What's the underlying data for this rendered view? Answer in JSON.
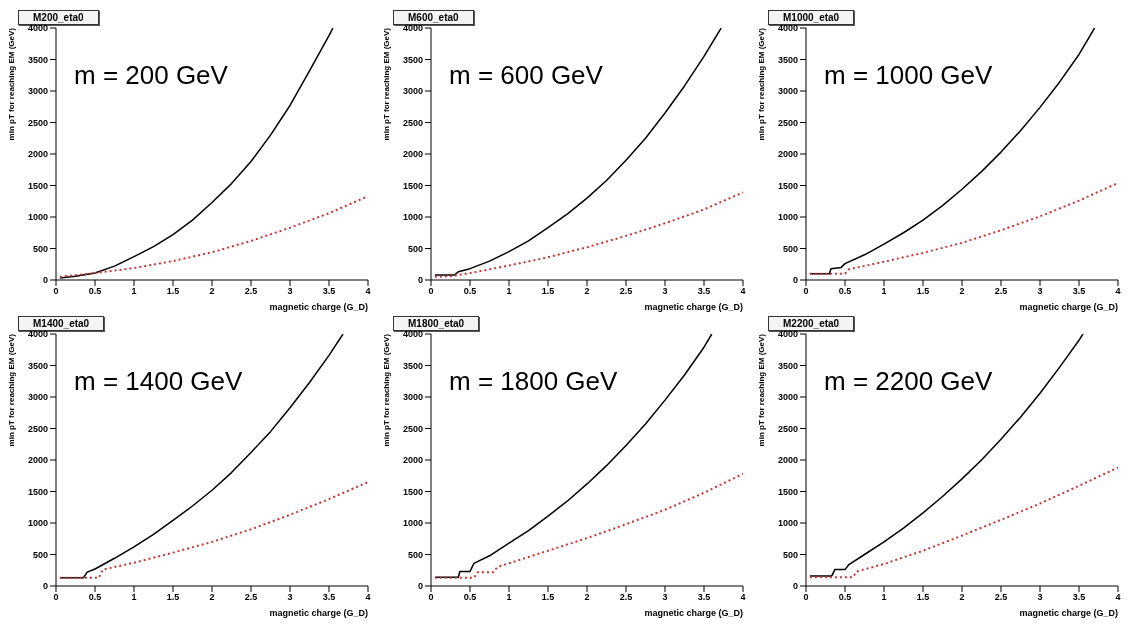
{
  "chart_data": [
    {
      "type": "line",
      "title": "M200_eta0",
      "annotations": [
        "m = 200 GeV"
      ],
      "xlabel": "magnetic charge (G_D)",
      "ylabel": "min pT for reaching EM (GeV)",
      "xlim": [
        0,
        4
      ],
      "ylim": [
        0,
        4000
      ],
      "xticks": [
        0,
        0.5,
        1,
        1.5,
        2,
        2.5,
        3,
        3.5,
        4
      ],
      "yticks": [
        0,
        500,
        1000,
        1500,
        2000,
        2500,
        3000,
        3500,
        4000
      ],
      "series": [
        {
          "color": "#000000",
          "line_style": "solid",
          "x": [
            0.05,
            0.25,
            0.5,
            0.75,
            1,
            1.25,
            1.5,
            1.75,
            2,
            2.25,
            2.5,
            2.75,
            3,
            3.25,
            3.5,
            3.55
          ],
          "values": [
            30,
            60,
            110,
            220,
            370,
            530,
            720,
            950,
            1230,
            1530,
            1880,
            2300,
            2770,
            3320,
            3880,
            4000
          ]
        },
        {
          "color": "#cc3333",
          "line_style": "dotted",
          "x": [
            0.05,
            0.5,
            1,
            1.5,
            2,
            2.5,
            3,
            3.5,
            4
          ],
          "values": [
            50,
            110,
            190,
            300,
            440,
            620,
            830,
            1060,
            1330
          ]
        }
      ]
    },
    {
      "type": "line",
      "title": "M600_eta0",
      "annotations": [
        "m = 600 GeV"
      ],
      "xlabel": "magnetic charge (G_D)",
      "ylabel": "min pT for reaching EM (GeV)",
      "xlim": [
        0,
        4
      ],
      "ylim": [
        0,
        4000
      ],
      "xticks": [
        0,
        0.5,
        1,
        1.5,
        2,
        2.5,
        3,
        3.5,
        4
      ],
      "yticks": [
        0,
        500,
        1000,
        1500,
        2000,
        2500,
        3000,
        3500,
        4000
      ],
      "series": [
        {
          "color": "#000000",
          "line_style": "solid",
          "x": [
            0.05,
            0.3,
            0.35,
            0.5,
            0.75,
            1,
            1.25,
            1.5,
            1.75,
            2,
            2.25,
            2.5,
            2.75,
            3,
            3.25,
            3.5,
            3.72
          ],
          "values": [
            80,
            80,
            130,
            180,
            300,
            450,
            620,
            830,
            1050,
            1300,
            1580,
            1900,
            2250,
            2650,
            3080,
            3550,
            4000
          ]
        },
        {
          "color": "#cc3333",
          "line_style": "dotted",
          "x": [
            0.05,
            0.25,
            0.5,
            1,
            1.5,
            2,
            2.5,
            3,
            3.5,
            4
          ],
          "values": [
            50,
            60,
            110,
            230,
            360,
            520,
            700,
            900,
            1120,
            1390
          ]
        }
      ]
    },
    {
      "type": "line",
      "title": "M1000_eta0",
      "annotations": [
        "m = 1000 GeV"
      ],
      "xlabel": "magnetic charge (G_D)",
      "ylabel": "min pT for reaching EM (GeV)",
      "xlim": [
        0,
        4
      ],
      "ylim": [
        0,
        4000
      ],
      "xticks": [
        0,
        0.5,
        1,
        1.5,
        2,
        2.5,
        3,
        3.5,
        4
      ],
      "yticks": [
        0,
        500,
        1000,
        1500,
        2000,
        2500,
        3000,
        3500,
        4000
      ],
      "series": [
        {
          "color": "#000000",
          "line_style": "solid",
          "x": [
            0.05,
            0.3,
            0.32,
            0.45,
            0.5,
            0.75,
            1,
            1.25,
            1.5,
            1.75,
            2,
            2.25,
            2.5,
            2.75,
            3,
            3.25,
            3.5,
            3.7
          ],
          "values": [
            100,
            100,
            180,
            200,
            260,
            400,
            570,
            750,
            950,
            1180,
            1440,
            1720,
            2030,
            2370,
            2740,
            3140,
            3580,
            4000
          ]
        },
        {
          "color": "#cc3333",
          "line_style": "dotted",
          "x": [
            0.05,
            0.5,
            0.55,
            1,
            1.5,
            2,
            2.5,
            3,
            3.5,
            4
          ],
          "values": [
            100,
            100,
            170,
            290,
            430,
            590,
            790,
            1010,
            1260,
            1540
          ]
        }
      ]
    },
    {
      "type": "line",
      "title": "M1400_eta0",
      "annotations": [
        "m = 1400 GeV"
      ],
      "xlabel": "magnetic charge (G_D)",
      "ylabel": "min pT for reaching EM (GeV)",
      "xlim": [
        0,
        4
      ],
      "ylim": [
        0,
        4000
      ],
      "xticks": [
        0,
        0.5,
        1,
        1.5,
        2,
        2.5,
        3,
        3.5,
        4
      ],
      "yticks": [
        0,
        500,
        1000,
        1500,
        2000,
        2500,
        3000,
        3500,
        4000
      ],
      "series": [
        {
          "color": "#000000",
          "line_style": "solid",
          "x": [
            0.05,
            0.35,
            0.4,
            0.5,
            0.75,
            1,
            1.25,
            1.5,
            1.75,
            2,
            2.25,
            2.5,
            2.75,
            3,
            3.25,
            3.5,
            3.68
          ],
          "values": [
            130,
            130,
            220,
            270,
            440,
            620,
            820,
            1040,
            1270,
            1520,
            1800,
            2120,
            2450,
            2830,
            3230,
            3660,
            4000
          ]
        },
        {
          "color": "#cc3333",
          "line_style": "dotted",
          "x": [
            0.05,
            0.55,
            0.6,
            1,
            1.5,
            2,
            2.5,
            3,
            3.5,
            4
          ],
          "values": [
            130,
            130,
            260,
            370,
            530,
            700,
            900,
            1130,
            1380,
            1650
          ]
        }
      ]
    },
    {
      "type": "line",
      "title": "M1800_eta0",
      "annotations": [
        "m = 1800 GeV"
      ],
      "xlabel": "magnetic charge (G_D)",
      "ylabel": "min pT for reaching EM (GeV)",
      "xlim": [
        0,
        4
      ],
      "ylim": [
        0,
        4000
      ],
      "xticks": [
        0,
        0.5,
        1,
        1.5,
        2,
        2.5,
        3,
        3.5,
        4
      ],
      "yticks": [
        0,
        500,
        1000,
        1500,
        2000,
        2500,
        3000,
        3500,
        4000
      ],
      "series": [
        {
          "color": "#000000",
          "line_style": "solid",
          "x": [
            0.05,
            0.35,
            0.37,
            0.5,
            0.55,
            0.75,
            1,
            1.25,
            1.5,
            1.75,
            2,
            2.25,
            2.5,
            2.75,
            3,
            3.25,
            3.5,
            3.6
          ],
          "values": [
            140,
            140,
            230,
            230,
            360,
            480,
            680,
            880,
            1110,
            1350,
            1620,
            1910,
            2230,
            2570,
            2950,
            3350,
            3790,
            4000
          ]
        },
        {
          "color": "#cc3333",
          "line_style": "dotted",
          "x": [
            0.05,
            0.55,
            0.6,
            0.8,
            0.85,
            1,
            1.5,
            2,
            2.5,
            3,
            3.5,
            4
          ],
          "values": [
            130,
            130,
            220,
            220,
            300,
            360,
            560,
            760,
            980,
            1210,
            1480,
            1780
          ]
        }
      ]
    },
    {
      "type": "line",
      "title": "M2200_eta0",
      "annotations": [
        "m = 2200 GeV"
      ],
      "xlabel": "magnetic charge (G_D)",
      "ylabel": "min pT for reaching EM (GeV)",
      "xlim": [
        0,
        4
      ],
      "ylim": [
        0,
        4000
      ],
      "xticks": [
        0,
        0.5,
        1,
        1.5,
        2,
        2.5,
        3,
        3.5,
        4
      ],
      "yticks": [
        0,
        500,
        1000,
        1500,
        2000,
        2500,
        3000,
        3500,
        4000
      ],
      "series": [
        {
          "color": "#000000",
          "line_style": "solid",
          "x": [
            0.05,
            0.33,
            0.37,
            0.5,
            0.55,
            0.75,
            1,
            1.25,
            1.5,
            1.75,
            2,
            2.25,
            2.5,
            2.75,
            3,
            3.25,
            3.5,
            3.55
          ],
          "values": [
            160,
            160,
            260,
            260,
            340,
            500,
            700,
            920,
            1160,
            1420,
            1700,
            2000,
            2330,
            2680,
            3060,
            3470,
            3900,
            4000
          ]
        },
        {
          "color": "#cc3333",
          "line_style": "dotted",
          "x": [
            0.05,
            0.6,
            0.65,
            1,
            1.5,
            2,
            2.5,
            3,
            3.5,
            4
          ],
          "values": [
            140,
            140,
            230,
            350,
            560,
            800,
            1050,
            1310,
            1590,
            1880
          ]
        }
      ]
    }
  ]
}
